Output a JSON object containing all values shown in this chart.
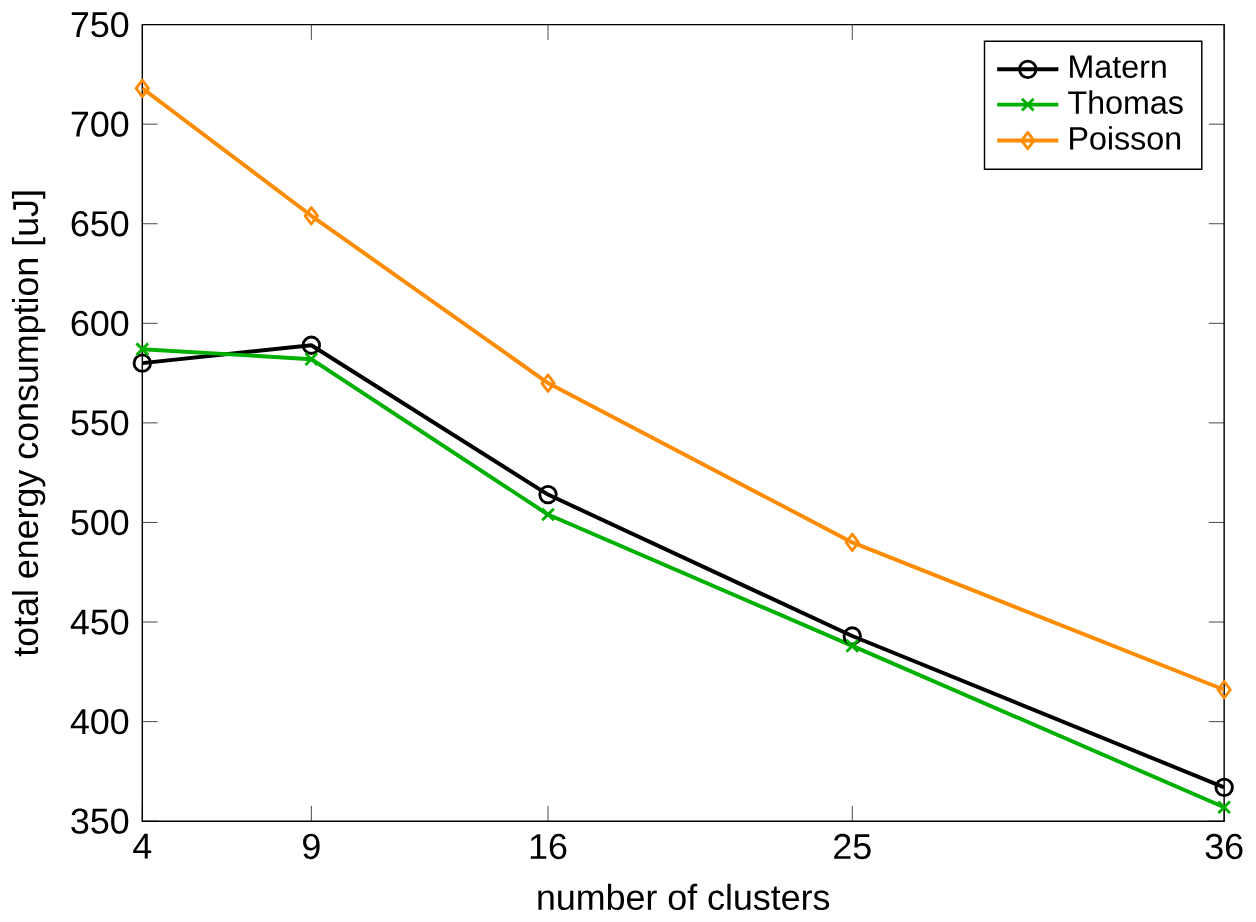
{
  "chart_data": {
    "type": "line",
    "xlabel": "number of clusters",
    "ylabel": "total energy consumption [uJ]",
    "x": [
      4,
      9,
      16,
      25,
      36
    ],
    "series": [
      {
        "name": "Matern",
        "color": "#000000",
        "marker": "circle",
        "values": [
          580,
          589,
          514,
          443,
          367
        ]
      },
      {
        "name": "Thomas",
        "color": "#00b000",
        "marker": "cross",
        "values": [
          587,
          582,
          504,
          438,
          357
        ]
      },
      {
        "name": "Poisson",
        "color": "#ff8c00",
        "marker": "diamond",
        "values": [
          718,
          654,
          570,
          490,
          416
        ]
      }
    ],
    "xlim": [
      4,
      36
    ],
    "xticks": [
      4,
      9,
      16,
      25,
      36
    ],
    "ylim": [
      350,
      750
    ],
    "yticks": [
      350,
      400,
      450,
      500,
      550,
      600,
      650,
      700,
      750
    ],
    "legend": "top right",
    "grid": false
  }
}
